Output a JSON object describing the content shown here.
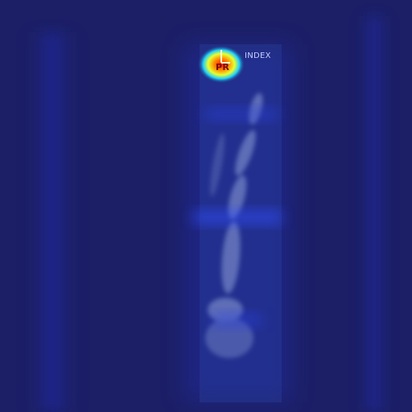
{
  "image": {
    "description_type": "heatmap-overlay-xray",
    "view_label": "INDEX",
    "marker_letter": "PR",
    "heatmap_peak_color": "#ff2200",
    "background_color": "#1c1f66",
    "bone_tint": "#8fa0d8"
  }
}
